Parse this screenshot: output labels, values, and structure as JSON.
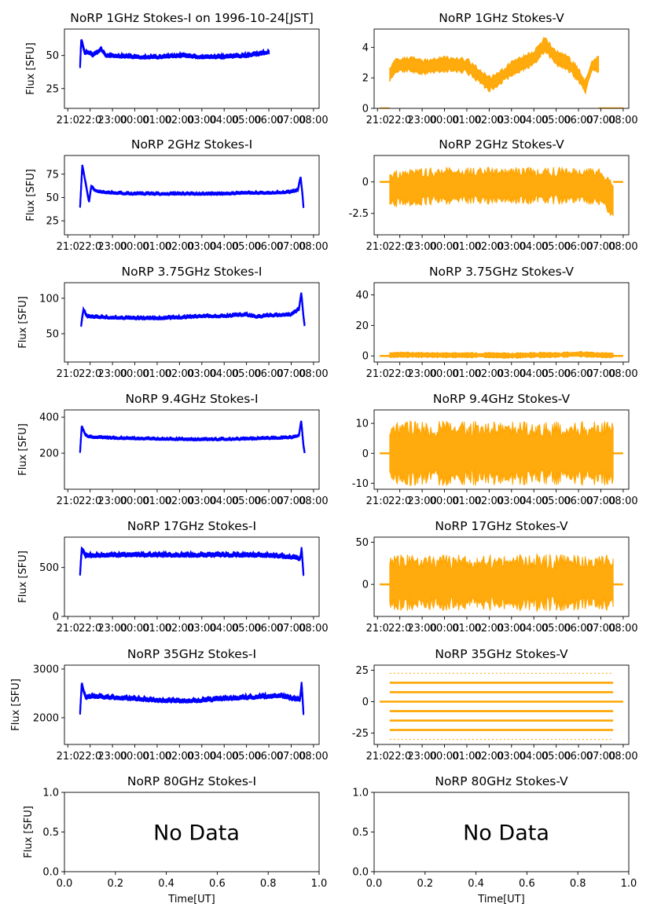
{
  "figure": {
    "time_ticks": [
      "21:00",
      "22:00",
      "23:00",
      "00:00",
      "01:00",
      "02:00",
      "03:00",
      "04:00",
      "05:00",
      "06:00",
      "07:00",
      "08:00"
    ],
    "time_ticks_rendered": [
      "21:0",
      "22:0",
      "23:00",
      "00:00",
      "01:00",
      "02:00",
      "03:00",
      "04:00",
      "05:00",
      "06:00",
      "07:00",
      "08:00"
    ],
    "colors": {
      "stokes_i": "#0000ff",
      "stokes_v": "#ffa500",
      "axes": "#000000"
    }
  },
  "chart_data": [
    {
      "type": "line",
      "title": "NoRP 1GHz Stokes-I on 1996-10-24[JST]",
      "ylabel": "Flux [SFU]",
      "xlabel": "",
      "ylim": [
        10,
        70
      ],
      "yticks": [
        25,
        50
      ],
      "series": [
        {
          "name": "Stokes-I",
          "color": "#0000ff",
          "start": 21.55,
          "end": 30.0,
          "band": 2,
          "points": [
            [
              21.55,
              42
            ],
            [
              21.6,
              62
            ],
            [
              21.75,
              52
            ],
            [
              21.9,
              53
            ],
            [
              22.1,
              50
            ],
            [
              22.3,
              52
            ],
            [
              22.5,
              55
            ],
            [
              22.7,
              50
            ],
            [
              23.0,
              50
            ],
            [
              24.0,
              49
            ],
            [
              25.0,
              49
            ],
            [
              26.0,
              50
            ],
            [
              27.0,
              49
            ],
            [
              28.0,
              49
            ],
            [
              29.0,
              50
            ],
            [
              29.5,
              51
            ],
            [
              30.0,
              53
            ]
          ]
        }
      ]
    },
    {
      "type": "scatter",
      "title": "NoRP 1GHz Stokes-V",
      "ylabel": "",
      "xlabel": "",
      "ylim": [
        0,
        5.2
      ],
      "yticks": [
        0,
        2,
        4
      ],
      "series": [
        {
          "name": "Stokes-V",
          "color": "#ffa500",
          "start": 21.55,
          "end": 30.9,
          "band": 0.8,
          "baseline": 0,
          "points": [
            [
              21.55,
              2.2
            ],
            [
              21.8,
              2.8
            ],
            [
              22.5,
              2.9
            ],
            [
              23.0,
              2.7
            ],
            [
              24.0,
              2.9
            ],
            [
              25.0,
              2.8
            ],
            [
              25.5,
              2.2
            ],
            [
              26.0,
              1.6
            ],
            [
              26.3,
              1.8
            ],
            [
              27.0,
              2.6
            ],
            [
              28.0,
              3.3
            ],
            [
              28.5,
              4.2
            ],
            [
              29.0,
              3.3
            ],
            [
              29.5,
              3.0
            ],
            [
              30.0,
              2.2
            ],
            [
              30.3,
              1.4
            ],
            [
              30.6,
              2.8
            ],
            [
              30.9,
              2.9
            ]
          ]
        }
      ]
    },
    {
      "type": "line",
      "title": "NoRP 2GHz Stokes-I",
      "ylabel": "Flux [SFU]",
      "xlabel": "",
      "ylim": [
        10,
        95
      ],
      "yticks": [
        25,
        50,
        75
      ],
      "series": [
        {
          "name": "Stokes-I",
          "color": "#0000ff",
          "start": 21.55,
          "end": 31.55,
          "band": 2,
          "points": [
            [
              21.55,
              40
            ],
            [
              21.65,
              85
            ],
            [
              21.8,
              65
            ],
            [
              21.95,
              45
            ],
            [
              22.05,
              62
            ],
            [
              22.2,
              58
            ],
            [
              22.5,
              56
            ],
            [
              23.0,
              55
            ],
            [
              24.0,
              54
            ],
            [
              25.0,
              54
            ],
            [
              26.0,
              54
            ],
            [
              27.0,
              54
            ],
            [
              28.0,
              54
            ],
            [
              29.0,
              55
            ],
            [
              30.0,
              55
            ],
            [
              31.0,
              56
            ],
            [
              31.3,
              58
            ],
            [
              31.42,
              72
            ],
            [
              31.5,
              55
            ],
            [
              31.55,
              40
            ]
          ]
        }
      ]
    },
    {
      "type": "scatter",
      "title": "NoRP 2GHz Stokes-V",
      "ylabel": "",
      "xlabel": "",
      "ylim": [
        -4.2,
        2.1
      ],
      "yticks": [
        0,
        -2.5
      ],
      "series": [
        {
          "name": "Stokes-V",
          "color": "#ffa500",
          "start": 21.55,
          "end": 31.55,
          "band": 2.2,
          "baseline": 0,
          "points": [
            [
              21.55,
              -0.6
            ],
            [
              22.0,
              -0.5
            ],
            [
              23.0,
              -0.4
            ],
            [
              24.0,
              -0.3
            ],
            [
              25.0,
              -0.3
            ],
            [
              26.0,
              -0.3
            ],
            [
              27.0,
              -0.3
            ],
            [
              28.0,
              -0.3
            ],
            [
              29.0,
              -0.3
            ],
            [
              30.0,
              -0.3
            ],
            [
              31.0,
              -0.4
            ],
            [
              31.55,
              -1.5
            ]
          ]
        }
      ]
    },
    {
      "type": "line",
      "title": "NoRP 3.75GHz Stokes-I",
      "ylabel": "Flux [SFU]",
      "xlabel": "",
      "ylim": [
        10,
        122
      ],
      "yticks": [
        50,
        100
      ],
      "series": [
        {
          "name": "Stokes-I",
          "color": "#0000ff",
          "start": 21.6,
          "end": 31.6,
          "band": 3,
          "points": [
            [
              21.6,
              62
            ],
            [
              21.7,
              85
            ],
            [
              21.85,
              75
            ],
            [
              22.0,
              74
            ],
            [
              23.0,
              73
            ],
            [
              24.0,
              72
            ],
            [
              25.0,
              72
            ],
            [
              26.0,
              73
            ],
            [
              27.0,
              75
            ],
            [
              28.0,
              75
            ],
            [
              28.5,
              76
            ],
            [
              29.0,
              77
            ],
            [
              29.5,
              74
            ],
            [
              30.0,
              76
            ],
            [
              31.0,
              77
            ],
            [
              31.35,
              85
            ],
            [
              31.45,
              108
            ],
            [
              31.55,
              75
            ],
            [
              31.6,
              62
            ]
          ]
        }
      ]
    },
    {
      "type": "scatter",
      "title": "NoRP 3.75GHz Stokes-V",
      "ylabel": "",
      "xlabel": "",
      "ylim": [
        -4,
        48
      ],
      "yticks": [
        0,
        20,
        40
      ],
      "series": [
        {
          "name": "Stokes-V",
          "color": "#ffa500",
          "start": 21.55,
          "end": 31.55,
          "band": 2.8,
          "baseline": 0,
          "points": [
            [
              21.55,
              0.5
            ],
            [
              22.0,
              0.8
            ],
            [
              24.0,
              0.5
            ],
            [
              26.0,
              0.5
            ],
            [
              27.0,
              0.2
            ],
            [
              28.0,
              0.6
            ],
            [
              29.0,
              0.6
            ],
            [
              30.0,
              1.2
            ],
            [
              31.0,
              0.5
            ],
            [
              31.55,
              0.4
            ]
          ]
        }
      ]
    },
    {
      "type": "line",
      "title": "NoRP 9.4GHz Stokes-I",
      "ylabel": "Flux [SFU]",
      "xlabel": "",
      "ylim": [
        0,
        440
      ],
      "yticks": [
        200,
        400
      ],
      "series": [
        {
          "name": "Stokes-I",
          "color": "#0000ff",
          "start": 21.55,
          "end": 31.6,
          "band": 10,
          "points": [
            [
              21.55,
              205
            ],
            [
              21.62,
              350
            ],
            [
              21.8,
              300
            ],
            [
              22.0,
              290
            ],
            [
              23.0,
              285
            ],
            [
              24.0,
              282
            ],
            [
              25.0,
              280
            ],
            [
              26.0,
              278
            ],
            [
              27.0,
              276
            ],
            [
              28.0,
              278
            ],
            [
              29.0,
              280
            ],
            [
              30.0,
              283
            ],
            [
              31.0,
              288
            ],
            [
              31.35,
              300
            ],
            [
              31.45,
              380
            ],
            [
              31.55,
              240
            ],
            [
              31.6,
              205
            ]
          ]
        }
      ]
    },
    {
      "type": "scatter",
      "title": "NoRP 9.4GHz Stokes-V",
      "ylabel": "",
      "xlabel": "",
      "ylim": [
        -12,
        14.5
      ],
      "yticks": [
        -10,
        0,
        10
      ],
      "series": [
        {
          "name": "Stokes-V",
          "color": "#ffa500",
          "start": 21.55,
          "end": 31.55,
          "band": 16,
          "baseline": 0,
          "points": [
            [
              21.55,
              0
            ],
            [
              31.55,
              0
            ]
          ]
        }
      ]
    },
    {
      "type": "line",
      "title": "NoRP 17GHz Stokes-I",
      "ylabel": "Flux [SFU]",
      "xlabel": "",
      "ylim": [
        0,
        810
      ],
      "yticks": [
        0,
        500
      ],
      "series": [
        {
          "name": "Stokes-I",
          "color": "#0000ff",
          "start": 21.55,
          "end": 31.55,
          "band": 30,
          "points": [
            [
              21.55,
              430
            ],
            [
              21.62,
              690
            ],
            [
              21.8,
              620
            ],
            [
              22.0,
              625
            ],
            [
              24.0,
              630
            ],
            [
              26.0,
              628
            ],
            [
              28.0,
              630
            ],
            [
              30.0,
              625
            ],
            [
              31.0,
              610
            ],
            [
              31.4,
              590
            ],
            [
              31.47,
              690
            ],
            [
              31.55,
              430
            ]
          ]
        }
      ]
    },
    {
      "type": "scatter",
      "title": "NoRP 17GHz Stokes-V",
      "ylabel": "",
      "xlabel": "",
      "ylim": [
        -38,
        56
      ],
      "yticks": [
        0,
        50
      ],
      "series": [
        {
          "name": "Stokes-V",
          "color": "#ffa500",
          "start": 21.55,
          "end": 31.55,
          "band": 50,
          "baseline": 0,
          "points": [
            [
              21.55,
              2
            ],
            [
              31.55,
              2
            ]
          ]
        }
      ]
    },
    {
      "type": "line",
      "title": "NoRP 35GHz Stokes-I",
      "ylabel": "Flux [SFU]",
      "xlabel": "",
      "ylim": [
        1450,
        3080
      ],
      "yticks": [
        2000,
        3000
      ],
      "series": [
        {
          "name": "Stokes-I",
          "color": "#0000ff",
          "start": 21.55,
          "end": 31.55,
          "band": 60,
          "points": [
            [
              21.55,
              2100
            ],
            [
              21.62,
              2700
            ],
            [
              21.8,
              2420
            ],
            [
              22.0,
              2440
            ],
            [
              23.0,
              2420
            ],
            [
              24.0,
              2390
            ],
            [
              25.0,
              2360
            ],
            [
              26.0,
              2350
            ],
            [
              27.0,
              2360
            ],
            [
              28.0,
              2390
            ],
            [
              29.0,
              2420
            ],
            [
              30.0,
              2440
            ],
            [
              30.5,
              2460
            ],
            [
              31.0,
              2400
            ],
            [
              31.4,
              2380
            ],
            [
              31.47,
              2700
            ],
            [
              31.55,
              2100
            ]
          ]
        }
      ]
    },
    {
      "type": "scatter",
      "title": "NoRP 35GHz Stokes-V",
      "ylabel": "",
      "xlabel": "",
      "ylim": [
        -34,
        29
      ],
      "yticks": [
        -25,
        0,
        25
      ],
      "levels": [
        -30,
        -22.5,
        -15,
        -7.5,
        0,
        7.5,
        15,
        22.5
      ],
      "series": [
        {
          "name": "Stokes-V",
          "color": "#ffa500",
          "start": 21.55,
          "end": 31.55,
          "band": 0,
          "baseline": 0,
          "points": [
            [
              21.55,
              0
            ],
            [
              31.55,
              0
            ]
          ]
        }
      ]
    },
    {
      "type": "scatter",
      "title": "NoRP 80GHz Stokes-I",
      "ylabel": "Flux [SFU]",
      "xlabel": "Time[UT]",
      "xlim": [
        0,
        1
      ],
      "ylim": [
        0,
        1
      ],
      "xticks": [
        "0.0",
        "0.2",
        "0.4",
        "0.6",
        "0.8",
        "1.0"
      ],
      "yticks": [
        "0.0",
        "0.5",
        "1.0"
      ],
      "annotation": "No Data",
      "series": []
    },
    {
      "type": "scatter",
      "title": "NoRP 80GHz Stokes-V",
      "ylabel": "",
      "xlabel": "Time[UT]",
      "xlim": [
        0,
        1
      ],
      "ylim": [
        0,
        1
      ],
      "xticks": [
        "0.0",
        "0.2",
        "0.4",
        "0.6",
        "0.8",
        "1.0"
      ],
      "yticks": [
        "0.0",
        "0.5",
        "1.0"
      ],
      "annotation": "No Data",
      "series": []
    }
  ]
}
